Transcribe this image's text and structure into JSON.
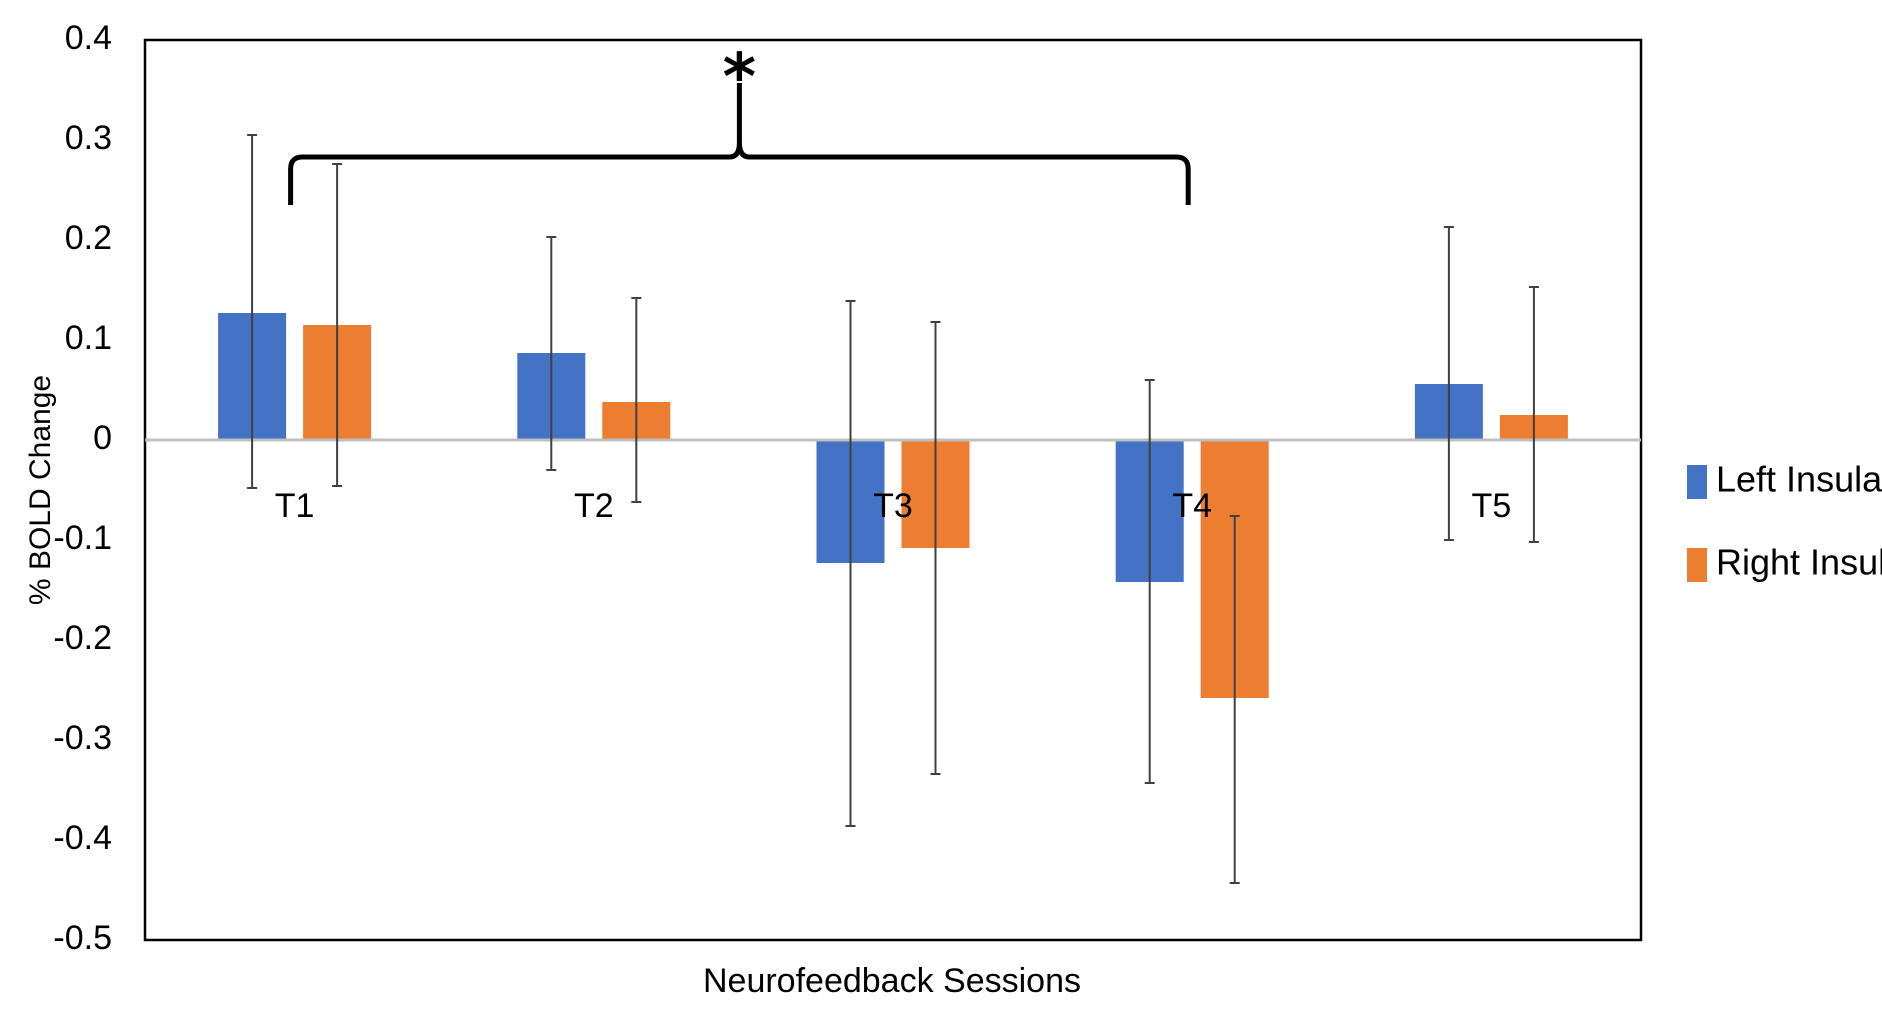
{
  "chart_data": {
    "type": "bar",
    "title": "",
    "xlabel": "Neurofeedback Sessions",
    "ylabel": "% BOLD Change",
    "ylim": [
      -0.5,
      0.4
    ],
    "yticks": [
      0.4,
      0.3,
      0.2,
      0.1,
      0,
      -0.1,
      -0.2,
      -0.3,
      -0.4,
      -0.5
    ],
    "ytick_labels": [
      "0.4",
      "0.3",
      "0.2",
      "0.1",
      "0",
      "-0.1",
      "-0.2",
      "-0.3",
      "-0.4",
      "-0.5"
    ],
    "categories": [
      "T1",
      "T2",
      "T3",
      "T4",
      "T5"
    ],
    "series": [
      {
        "name": "Left Insula",
        "color": "#4472C4",
        "values": [
          0.127,
          0.087,
          -0.123,
          -0.142,
          0.056
        ],
        "error_low": [
          -0.048,
          -0.03,
          -0.386,
          -0.343,
          -0.1
        ],
        "error_high": [
          0.305,
          0.203,
          0.139,
          0.06,
          0.213
        ]
      },
      {
        "name": "Right Insula",
        "color": "#ED7D31",
        "values": [
          0.115,
          0.038,
          -0.108,
          -0.258,
          0.025
        ],
        "error_low": [
          -0.046,
          -0.062,
          -0.334,
          -0.443,
          -0.102
        ],
        "error_high": [
          0.276,
          0.142,
          0.118,
          -0.076,
          0.153
        ]
      }
    ],
    "legend": "right",
    "grid": false,
    "annotation": {
      "text": "*",
      "bracket_from": "T1",
      "bracket_to": "T4",
      "bracket_level": 0.283
    }
  }
}
